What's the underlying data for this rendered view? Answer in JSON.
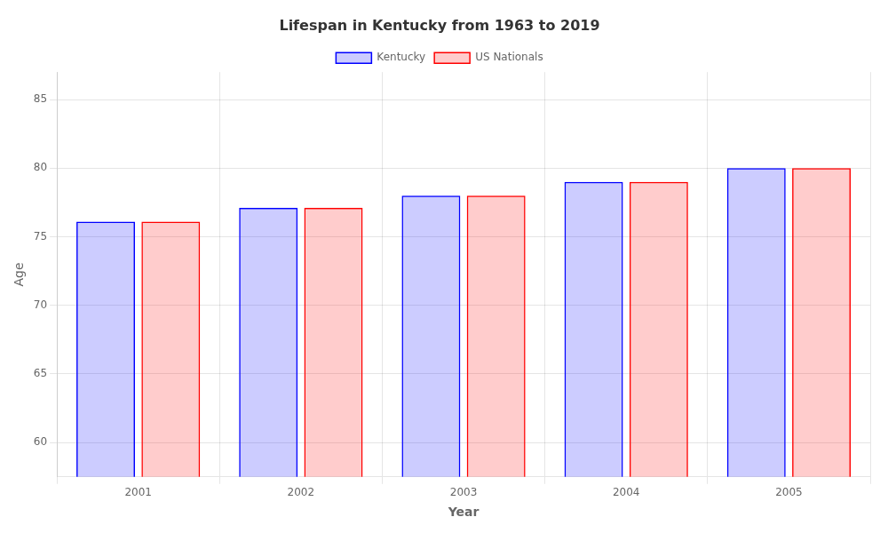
{
  "chart_data": {
    "type": "bar",
    "title": "Lifespan in Kentucky from 1963 to 2019",
    "x_label": "Year",
    "y_label": "Age",
    "categories": [
      "2001",
      "2002",
      "2003",
      "2004",
      "2005"
    ],
    "series": [
      {
        "name": "Kentucky",
        "color": "#0000ff",
        "values": [
          76.1,
          77.1,
          78.0,
          79.0,
          80.0
        ]
      },
      {
        "name": "US Nationals",
        "color": "#ff0000",
        "values": [
          76.1,
          77.1,
          78.0,
          79.0,
          80.0
        ]
      }
    ],
    "ylim": [
      57.5,
      87
    ],
    "yticks": [
      60,
      65,
      70,
      75,
      80,
      85
    ],
    "grid": true,
    "legend": "top"
  }
}
